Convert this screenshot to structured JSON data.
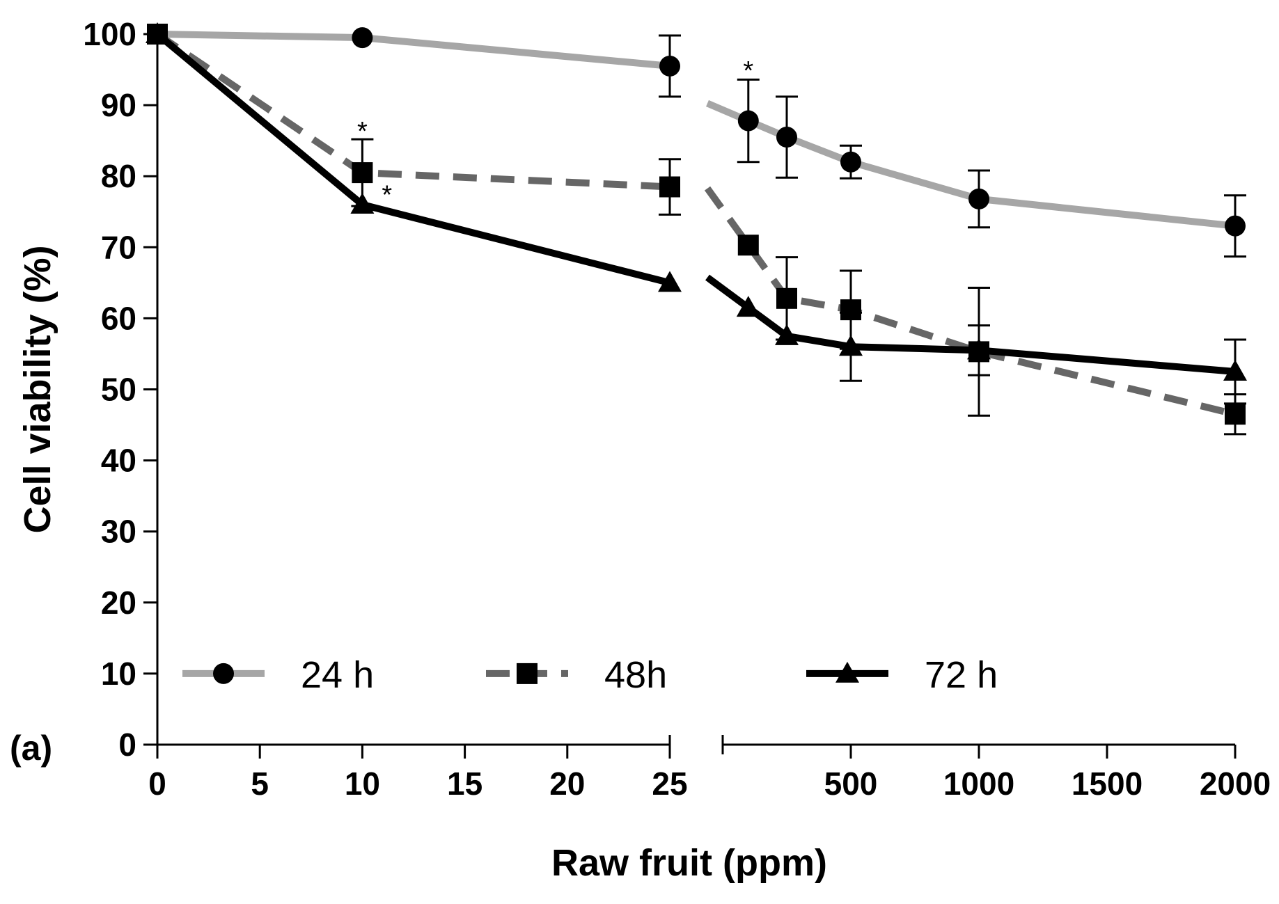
{
  "chart_data": {
    "type": "line",
    "title": "",
    "panel_label": "(a)",
    "xlabel": "Raw fruit (ppm)",
    "ylabel": "Cell viability (%)",
    "ylim": [
      0,
      100
    ],
    "yticks": [
      0,
      10,
      20,
      30,
      40,
      50,
      60,
      70,
      80,
      90,
      100
    ],
    "x_axis_break": true,
    "x_segments": [
      {
        "range": [
          0,
          25
        ],
        "ticks": [
          0,
          5,
          10,
          15,
          20,
          25
        ]
      },
      {
        "range": [
          0,
          2000
        ],
        "ticks": [
          500,
          1000,
          1500,
          2000
        ]
      }
    ],
    "legend": [
      "24 h",
      "48h",
      "72 h"
    ],
    "legend_position": "bottom",
    "series": [
      {
        "name": "24 h",
        "color": "#a6a6a6",
        "line_style": "solid",
        "marker": "circle",
        "points": [
          {
            "segment": 0,
            "x": 0,
            "y": 100,
            "err": 0
          },
          {
            "segment": 0,
            "x": 10,
            "y": 99.5,
            "err": 0
          },
          {
            "segment": 0,
            "x": 25,
            "y": 95.5,
            "err": 4.3
          },
          {
            "segment": 1,
            "x": 100,
            "y": 87.8,
            "err": 5.8
          },
          {
            "segment": 1,
            "x": 250,
            "y": 85.5,
            "err": 5.7
          },
          {
            "segment": 1,
            "x": 500,
            "y": 82,
            "err": 2.3
          },
          {
            "segment": 1,
            "x": 1000,
            "y": 76.8,
            "err": 4
          },
          {
            "segment": 1,
            "x": 2000,
            "y": 73,
            "err": 4.3
          }
        ]
      },
      {
        "name": "48h",
        "color": "#666666",
        "line_style": "dashed",
        "marker": "square",
        "points": [
          {
            "segment": 0,
            "x": 0,
            "y": 100,
            "err": 0
          },
          {
            "segment": 0,
            "x": 10,
            "y": 80.5,
            "err": 4.7
          },
          {
            "segment": 0,
            "x": 25,
            "y": 78.5,
            "err": 3.9
          },
          {
            "segment": 1,
            "x": 100,
            "y": 70.3,
            "err": 0
          },
          {
            "segment": 1,
            "x": 250,
            "y": 62.8,
            "err": 5.8
          },
          {
            "segment": 1,
            "x": 500,
            "y": 61.2,
            "err": 5.5
          },
          {
            "segment": 1,
            "x": 1000,
            "y": 55.3,
            "err": 9
          },
          {
            "segment": 1,
            "x": 2000,
            "y": 46.5,
            "err": 2.8
          }
        ]
      },
      {
        "name": "72 h",
        "color": "#000000",
        "line_style": "solid",
        "marker": "triangle",
        "points": [
          {
            "segment": 0,
            "x": 0,
            "y": 100,
            "err": 0
          },
          {
            "segment": 0,
            "x": 10,
            "y": 76,
            "err": 0
          },
          {
            "segment": 0,
            "x": 25,
            "y": 65,
            "err": 0
          },
          {
            "segment": 1,
            "x": 100,
            "y": 61.5,
            "err": 0
          },
          {
            "segment": 1,
            "x": 250,
            "y": 57.5,
            "err": 0
          },
          {
            "segment": 1,
            "x": 500,
            "y": 56,
            "err": 4.8
          },
          {
            "segment": 1,
            "x": 1000,
            "y": 55.5,
            "err": 3.5
          },
          {
            "segment": 1,
            "x": 2000,
            "y": 52.5,
            "err": 4.5
          }
        ]
      }
    ],
    "annotations": [
      {
        "text": "*",
        "segment": 0,
        "x": 10,
        "y": 86.5
      },
      {
        "text": "*",
        "segment": 0,
        "x": 11.2,
        "y": 77.5
      },
      {
        "text": "*",
        "segment": 1,
        "x": 100,
        "y": 95
      }
    ]
  }
}
